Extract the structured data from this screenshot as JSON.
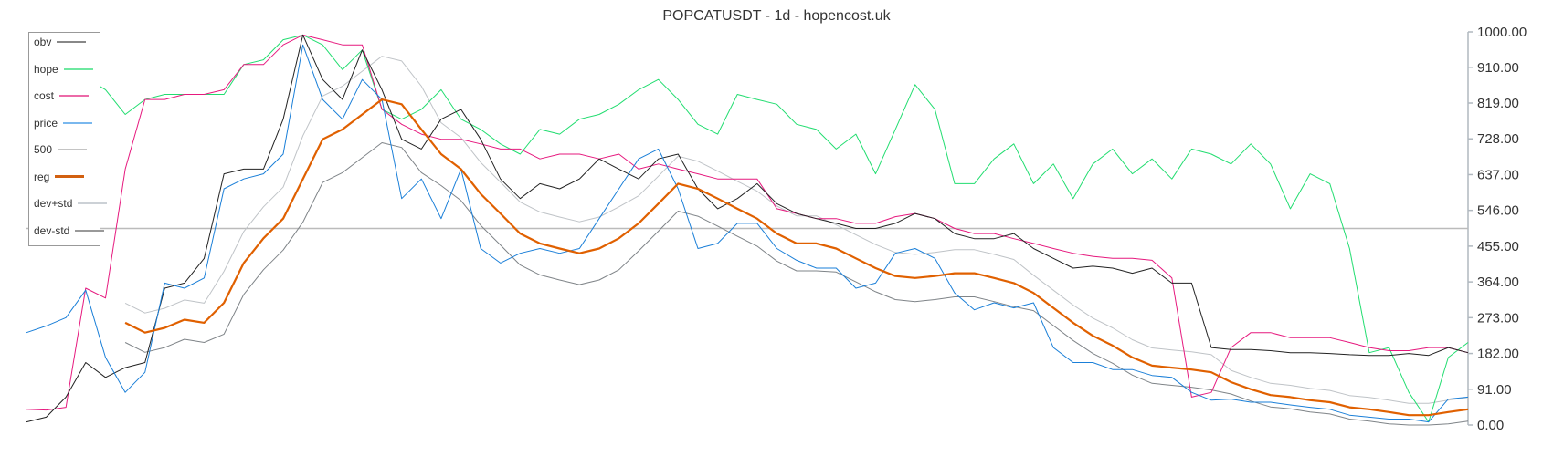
{
  "chart_data": {
    "type": "line",
    "title": "POPCATUSDT - 1d - hopencost.uk",
    "xlabel": "",
    "ylabel": "",
    "ylim": [
      0,
      1000
    ],
    "y_axis_side": "right",
    "y_ticks": [
      "0.00",
      "91.00",
      "182.00",
      "273.00",
      "364.00",
      "455.00",
      "546.00",
      "637.00",
      "728.00",
      "819.00",
      "910.00",
      "1000.00"
    ],
    "legend_placement": "top-left",
    "grid": false,
    "x": [
      0,
      1,
      2,
      3,
      4,
      5,
      6,
      7,
      8,
      9,
      10,
      11,
      12,
      13,
      14,
      15,
      16,
      17,
      18,
      19,
      20,
      21,
      22,
      23,
      24,
      25,
      26,
      27,
      28,
      29,
      30,
      31,
      32,
      33,
      34,
      35,
      36,
      37,
      38,
      39,
      40,
      41,
      42,
      43,
      44,
      45,
      46,
      47,
      48,
      49,
      50,
      51,
      52,
      53,
      54,
      55,
      56,
      57,
      58,
      59,
      60,
      61,
      62,
      63,
      64,
      65,
      66,
      67,
      68,
      69,
      70,
      71,
      72,
      73
    ],
    "series": [
      {
        "name": "obv",
        "color": "#222222",
        "legend_color": "#888888",
        "width": 1,
        "values": [
          8,
          20,
          71,
          159,
          121,
          146,
          159,
          348,
          361,
          424,
          639,
          651,
          651,
          778,
          992,
          879,
          828,
          954,
          853,
          727,
          702,
          778,
          803,
          727,
          626,
          576,
          614,
          601,
          626,
          677,
          651,
          626,
          677,
          689,
          601,
          550,
          576,
          614,
          563,
          538,
          525,
          513,
          500,
          500,
          513,
          538,
          525,
          487,
          474,
          474,
          487,
          449,
          424,
          399,
          404,
          399,
          386,
          399,
          361,
          361,
          197,
          192,
          192,
          189,
          184,
          184,
          182,
          179,
          177,
          177,
          182,
          177,
          197,
          184
        ]
      },
      {
        "name": "hope",
        "color": "#22dd70",
        "legend_color": "#6ee8a0",
        "width": 1,
        "values": [
          null,
          null,
          null,
          884,
          853,
          790,
          828,
          841,
          841,
          841,
          841,
          917,
          929,
          980,
          992,
          967,
          904,
          954,
          803,
          778,
          803,
          853,
          778,
          752,
          715,
          689,
          752,
          740,
          778,
          790,
          816,
          853,
          879,
          828,
          765,
          740,
          841,
          828,
          816,
          765,
          752,
          702,
          740,
          639,
          752,
          866,
          803,
          614,
          614,
          677,
          715,
          614,
          664,
          576,
          664,
          702,
          639,
          677,
          626,
          702,
          689,
          664,
          715,
          664,
          550,
          639,
          614,
          449,
          184,
          197,
          83,
          8,
          172,
          210
        ]
      },
      {
        "name": "cost",
        "color": "#e6197e",
        "legend_color": "#ec6aa8",
        "width": 1,
        "values": [
          40,
          38,
          45,
          348,
          323,
          651,
          828,
          828,
          841,
          841,
          853,
          917,
          917,
          967,
          992,
          980,
          967,
          967,
          803,
          765,
          740,
          727,
          727,
          715,
          702,
          702,
          677,
          689,
          689,
          677,
          689,
          651,
          664,
          651,
          639,
          626,
          626,
          626,
          550,
          538,
          525,
          525,
          513,
          513,
          530,
          538,
          525,
          500,
          487,
          487,
          474,
          462,
          449,
          437,
          429,
          424,
          424,
          419,
          374,
          71,
          83,
          197,
          235,
          235,
          222,
          222,
          222,
          210,
          197,
          189,
          189,
          197,
          197,
          184
        ]
      },
      {
        "name": "price",
        "color": "#1a7fd8",
        "legend_color": "#7ab8ee",
        "width": 1,
        "values": [
          235,
          252,
          273,
          343,
          172,
          83,
          134,
          361,
          348,
          374,
          601,
          626,
          639,
          689,
          967,
          828,
          778,
          879,
          828,
          576,
          626,
          525,
          651,
          449,
          412,
          437,
          449,
          437,
          449,
          525,
          601,
          677,
          702,
          601,
          449,
          462,
          513,
          513,
          449,
          419,
          399,
          399,
          348,
          361,
          437,
          449,
          424,
          336,
          293,
          311,
          298,
          311,
          197,
          159,
          159,
          141,
          141,
          126,
          121,
          83,
          63,
          66,
          58,
          58,
          51,
          45,
          40,
          25,
          20,
          15,
          15,
          8,
          66,
          71
        ]
      },
      {
        "name": "500",
        "color": "#bbbbbb",
        "legend_color": "#c4c4c4",
        "width": 1.5,
        "values": [
          500,
          500,
          500,
          500,
          500,
          500,
          500,
          500,
          500,
          500,
          500,
          500,
          500,
          500,
          500,
          500,
          500,
          500,
          500,
          500,
          500,
          500,
          500,
          500,
          500,
          500,
          500,
          500,
          500,
          500,
          500,
          500,
          500,
          500,
          500,
          500,
          500,
          500,
          500,
          500,
          500,
          500,
          500,
          500,
          500,
          500,
          500,
          500,
          500,
          500,
          500,
          500,
          500,
          500,
          500,
          500,
          500,
          500,
          500,
          500,
          500,
          500,
          500,
          500,
          500,
          500,
          500,
          500,
          500,
          500,
          500,
          500,
          500,
          500
        ]
      },
      {
        "name": "reg",
        "color": "#e06000",
        "legend_color": "#d26010",
        "width": 2.2,
        "values": [
          null,
          null,
          null,
          null,
          null,
          260,
          235,
          247,
          268,
          260,
          311,
          412,
          475,
          525,
          626,
          727,
          752,
          790,
          828,
          816,
          752,
          689,
          651,
          588,
          538,
          487,
          462,
          449,
          437,
          449,
          475,
          513,
          563,
          614,
          601,
          576,
          550,
          525,
          487,
          462,
          462,
          449,
          424,
          399,
          379,
          374,
          379,
          386,
          386,
          374,
          361,
          336,
          298,
          260,
          227,
          202,
          172,
          151,
          146,
          141,
          134,
          109,
          91,
          76,
          71,
          63,
          58,
          45,
          40,
          33,
          25,
          25,
          33,
          40
        ]
      },
      {
        "name": "dev+std",
        "color": "#bfc3c7",
        "legend_color": "#ccd1d6",
        "width": 1,
        "values": [
          null,
          null,
          null,
          null,
          null,
          310,
          285,
          297,
          318,
          310,
          391,
          492,
          555,
          605,
          736,
          837,
          862,
          900,
          938,
          926,
          862,
          769,
          731,
          668,
          618,
          567,
          542,
          529,
          517,
          529,
          555,
          583,
          633,
          684,
          671,
          646,
          620,
          595,
          557,
          532,
          532,
          509,
          484,
          459,
          439,
          434,
          439,
          446,
          446,
          434,
          421,
          381,
          343,
          305,
          272,
          247,
          217,
          196,
          191,
          186,
          179,
          139,
          121,
          106,
          101,
          93,
          88,
          75,
          70,
          63,
          55,
          55,
          63,
          70
        ]
      },
      {
        "name": "dev-std",
        "color": "#7f8488",
        "legend_color": "#999999",
        "width": 1,
        "values": [
          null,
          null,
          null,
          null,
          null,
          210,
          185,
          197,
          218,
          210,
          231,
          332,
          395,
          445,
          516,
          617,
          642,
          680,
          718,
          706,
          642,
          609,
          571,
          508,
          458,
          407,
          382,
          369,
          357,
          369,
          395,
          443,
          493,
          544,
          531,
          506,
          480,
          455,
          417,
          392,
          392,
          389,
          364,
          339,
          319,
          314,
          319,
          326,
          326,
          314,
          301,
          291,
          253,
          215,
          182,
          157,
          127,
          106,
          101,
          96,
          89,
          79,
          61,
          46,
          41,
          33,
          28,
          15,
          10,
          3,
          0,
          0,
          3,
          10
        ]
      }
    ]
  }
}
